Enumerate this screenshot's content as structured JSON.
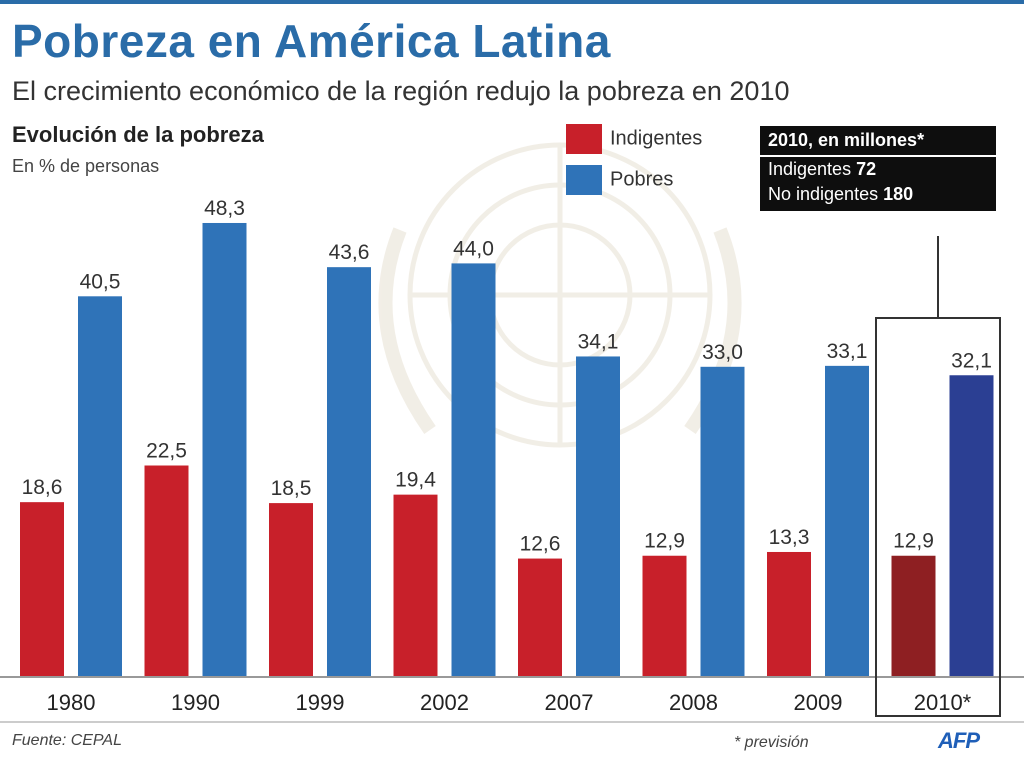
{
  "header": {
    "title": "Pobreza en América Latina",
    "subtitle": "El crecimiento económico de la región redujo la pobreza en 2010",
    "section_title": "Evolución de la pobreza",
    "unit_label": "En % de personas"
  },
  "legend": [
    {
      "name": "Indigentes",
      "color": "#c8202a"
    },
    {
      "name": "Pobres",
      "color": "#2f73b8"
    }
  ],
  "info_box": {
    "heading": "2010, en millones*",
    "rows": [
      {
        "label": "Indigentes",
        "value": "72"
      },
      {
        "label": "No indigentes",
        "value": "180"
      }
    ]
  },
  "footer": {
    "source": "Fuente: CEPAL",
    "footnote": "* previsión",
    "logo": "AFP"
  },
  "chart_data": {
    "type": "bar",
    "title": "Evolución de la pobreza",
    "ylabel": "En % de personas",
    "categories": [
      "1980",
      "1990",
      "1999",
      "2002",
      "2007",
      "2008",
      "2009",
      "2010*"
    ],
    "series": [
      {
        "name": "Indigentes",
        "values": [
          18.6,
          22.5,
          18.5,
          19.4,
          12.6,
          12.9,
          13.3,
          12.9
        ],
        "labels": [
          "18,6",
          "22,5",
          "18,5",
          "19,4",
          "12,6",
          "12,9",
          "13,3",
          "12,9"
        ],
        "color": "#c8202a",
        "highlight_color": "#8e1f22"
      },
      {
        "name": "Pobres",
        "values": [
          40.5,
          48.3,
          43.6,
          44.0,
          34.1,
          33.0,
          33.1,
          32.1
        ],
        "labels": [
          "40,5",
          "48,3",
          "43,6",
          "44,0",
          "34,1",
          "33,0",
          "33,1",
          "32,1"
        ],
        "color": "#2f73b8",
        "highlight_color": "#2b3f93"
      }
    ],
    "highlighted_category": "2010*",
    "ylim": [
      0,
      50
    ],
    "grid": false,
    "legend_position": "top-center"
  }
}
